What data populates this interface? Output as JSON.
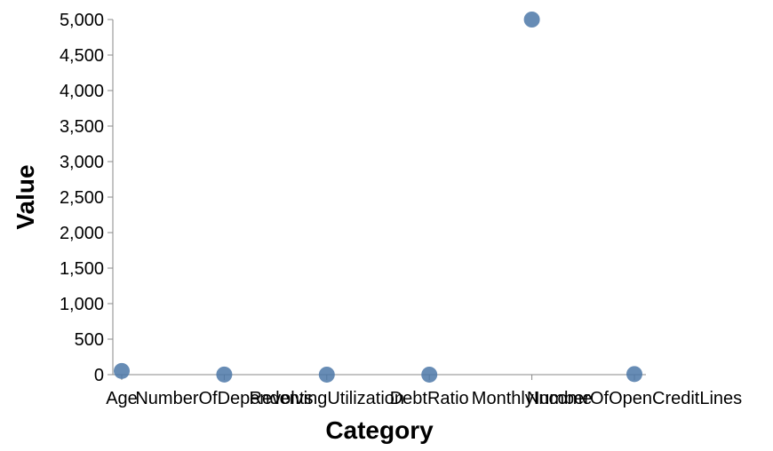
{
  "chart_data": {
    "type": "scatter",
    "categories": [
      "Age",
      "NumberOfDependents",
      "RevolvingUtilization",
      "DebtRatio",
      "MonthlyIncome",
      "NumberOfOpenCreditLines"
    ],
    "values": [
      52,
      2,
      0.5,
      0.35,
      5000,
      8
    ],
    "xlabel": "Category",
    "ylabel": "Value",
    "ylim": [
      0,
      5000
    ],
    "yticks": [
      0,
      500,
      1000,
      1500,
      2000,
      2500,
      3000,
      3500,
      4000,
      4500,
      5000
    ],
    "ytick_labels": [
      "0",
      "500",
      "1,000",
      "1,500",
      "2,000",
      "2,500",
      "3,000",
      "3,500",
      "4,000",
      "4,500",
      "5,000"
    ],
    "point_color": "#4c78a8",
    "grid": false,
    "legend": "none"
  }
}
